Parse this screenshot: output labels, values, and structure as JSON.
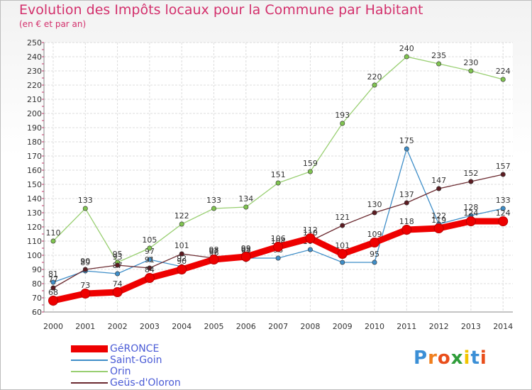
{
  "header": {
    "title": "Evolution des Impôts locaux pour la Commune par Habitant",
    "subtitle": "(en € et par an)"
  },
  "branding": {
    "logo_text": "Proxiti"
  },
  "chart_data": {
    "type": "line",
    "title": "Evolution des Impôts locaux pour la Commune par Habitant",
    "subtitle": "(en € et par an)",
    "xlabel": "",
    "ylabel": "",
    "ylim": [
      60,
      250
    ],
    "ystep": 10,
    "grid": true,
    "legend_position": "bottom-left",
    "categories": [
      "2000",
      "2001",
      "2002",
      "2003",
      "2004",
      "2005",
      "2006",
      "2007",
      "2008",
      "2009",
      "2010",
      "2011",
      "2012",
      "2013",
      "2014"
    ],
    "series": [
      {
        "name": "Saint-Goin",
        "color": "#3f8ec8",
        "marker": "#3f8ec8",
        "thick": false,
        "values": [
          81,
          89,
          87,
          97,
          92,
          96,
          98,
          98,
          104,
          95,
          95,
          175,
          122,
          128,
          133
        ]
      },
      {
        "name": "Orin",
        "color": "#99cf72",
        "marker": "#80c450",
        "thick": false,
        "values": [
          110,
          133,
          95,
          105,
          122,
          133,
          134,
          151,
          159,
          193,
          220,
          240,
          235,
          230,
          224
        ]
      },
      {
        "name": "Geüs-d'Oloron",
        "color": "#6b2a30",
        "marker": "#5c1c22",
        "thick": false,
        "values": [
          77,
          90,
          93,
          91,
          101,
          98,
          97,
          104,
          110,
          121,
          130,
          137,
          147,
          152,
          157
        ]
      },
      {
        "name": "GéRONCE",
        "color": "#ee0000",
        "marker": "#ee0000",
        "thick": true,
        "values": [
          68,
          73,
          74,
          84,
          90,
          97,
          99,
          106,
          112,
          101,
          109,
          118,
          119,
          124,
          124
        ]
      }
    ],
    "legend_order": [
      "GéRONCE",
      "Saint-Goin",
      "Orin",
      "Geüs-d'Oloron"
    ]
  }
}
